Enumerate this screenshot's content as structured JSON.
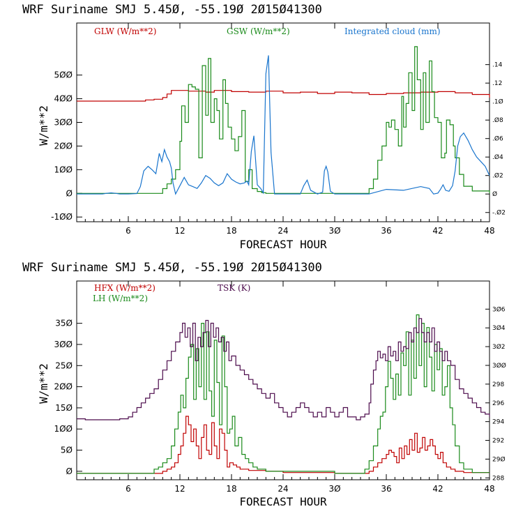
{
  "colors": {
    "red": "#c00000",
    "green": "#1a8a1a",
    "blue": "#1874cd",
    "purple": "#4b0a4b",
    "axis": "#000000"
  },
  "chart_data": [
    {
      "type": "line",
      "title": "WRF   Suriname SMJ   5.45Ø, -55.19Ø  2Ø15Ø41300",
      "xlabel": "FORECAST HOUR",
      "ylabel": "W/m**2",
      "xlim": [
        0,
        48
      ],
      "ylim": [
        -120,
        720
      ],
      "xticks": [
        6,
        12,
        18,
        24,
        30,
        36,
        42,
        48
      ],
      "yticks": [
        -100,
        0,
        100,
        200,
        300,
        400,
        500
      ],
      "ylim_right": [
        -0.03,
        0.185
      ],
      "yticks_right": [
        -0.02,
        0,
        0.02,
        0.04,
        0.06,
        0.08,
        0.1,
        0.12,
        0.14
      ],
      "yticks_right_labels": [
        "-.Ø2",
        "Ø",
        ".Ø2",
        ".Ø4",
        ".Ø6",
        ".Ø8",
        ".1Ø",
        ".12",
        ".14"
      ],
      "legend": [
        "GLW (W/m**2)",
        "GSW (W/m**2)",
        "Integrated cloud (mm)"
      ],
      "series": [
        {
          "name": "GLW (W/m**2)",
          "color": "red",
          "axis": "left",
          "step": true,
          "x": [
            0,
            6,
            8,
            9,
            10,
            10.5,
            11,
            12,
            13,
            15,
            16,
            18,
            20,
            22,
            24,
            26,
            28,
            30,
            32,
            34,
            36,
            38,
            40,
            42,
            44,
            46,
            48
          ],
          "y": [
            390,
            390,
            395,
            398,
            405,
            420,
            435,
            435,
            432,
            428,
            435,
            430,
            428,
            432,
            425,
            428,
            422,
            428,
            425,
            418,
            422,
            425,
            428,
            430,
            425,
            418,
            405
          ]
        },
        {
          "name": "GSW (W/m**2)",
          "color": "green",
          "axis": "left",
          "step": true,
          "x": [
            0,
            9.5,
            10,
            10.5,
            11,
            11.5,
            12,
            12.2,
            12.6,
            13,
            13.4,
            13.8,
            14.2,
            14.6,
            15,
            15.3,
            15.6,
            16,
            16.3,
            16.6,
            17,
            17.3,
            17.6,
            18,
            18.4,
            18.8,
            19.2,
            19.6,
            20,
            20.4,
            21,
            21.5,
            22,
            33.8,
            34,
            34.5,
            35,
            35.5,
            36,
            36.3,
            36.6,
            37,
            37.4,
            37.8,
            38,
            38.3,
            38.6,
            39,
            39.3,
            39.6,
            40,
            40.3,
            40.6,
            41,
            41.3,
            41.6,
            42,
            42.4,
            42.8,
            43,
            43.4,
            43.8,
            44,
            44.5,
            45,
            46,
            48
          ],
          "y": [
            0,
            0,
            20,
            40,
            60,
            100,
            220,
            370,
            300,
            460,
            450,
            440,
            150,
            540,
            330,
            570,
            300,
            400,
            350,
            230,
            480,
            380,
            280,
            230,
            180,
            240,
            350,
            50,
            100,
            20,
            8,
            3,
            0,
            0,
            20,
            60,
            140,
            200,
            300,
            280,
            310,
            270,
            200,
            410,
            280,
            380,
            510,
            350,
            620,
            480,
            270,
            510,
            300,
            560,
            430,
            320,
            300,
            150,
            170,
            310,
            290,
            200,
            150,
            80,
            30,
            10,
            0
          ]
        },
        {
          "name": "Integrated cloud (mm)",
          "color": "blue",
          "axis": "right",
          "step": false,
          "x": [
            0,
            3,
            3.5,
            4,
            4.5,
            5,
            6,
            7,
            7.4,
            7.8,
            8.3,
            8.8,
            9.2,
            9.6,
            9.9,
            10.2,
            10.5,
            10.8,
            11,
            11.2,
            11.5,
            12,
            12.5,
            13,
            13.5,
            14,
            14.5,
            15,
            15.5,
            16,
            16.5,
            17,
            17.5,
            18,
            18.5,
            19,
            19.5,
            19.8,
            20,
            20.3,
            20.6,
            21,
            21.4,
            21.7,
            22,
            22.3,
            22.6,
            23,
            25,
            26,
            26.4,
            26.8,
            27.2,
            28,
            28.6,
            28.8,
            29,
            29.2,
            29.5,
            30,
            34,
            36,
            38,
            40,
            41,
            41.5,
            42,
            42.3,
            42.6,
            42.9,
            43.3,
            43.7,
            44,
            44.3,
            44.6,
            45,
            45.5,
            46,
            46.5,
            47,
            47.5,
            48
          ],
          "y": [
            0,
            0,
            0.0008,
            0.0012,
            0.0008,
            0,
            0,
            0.0005,
            0.008,
            0.025,
            0.03,
            0.026,
            0.022,
            0.044,
            0.035,
            0.048,
            0.04,
            0.035,
            0.028,
            0.012,
            0,
            0.009,
            0.018,
            0.01,
            0.008,
            0.006,
            0.012,
            0.02,
            0.017,
            0.012,
            0.009,
            0.012,
            0.022,
            0.016,
            0.013,
            0.011,
            0.012,
            0.014,
            0.01,
            0.046,
            0.063,
            0.01,
            0.006,
            0.0012,
            0.13,
            0.15,
            0.045,
            0,
            0,
            0,
            0.009,
            0.015,
            0.004,
            0,
            0.002,
            0.025,
            0.03,
            0.024,
            0.003,
            0,
            0,
            0.005,
            0.004,
            0.008,
            0.006,
            0,
            0.001,
            0.005,
            0.01,
            0.004,
            0.003,
            0.009,
            0.025,
            0.052,
            0.062,
            0.066,
            0.058,
            0.048,
            0.04,
            0.035,
            0.03,
            0.02
          ]
        }
      ]
    },
    {
      "type": "line",
      "title": "WRF   Suriname SMJ   5.45Ø, -55.19Ø  2Ø15Ø41300",
      "xlabel": "FORECAST HOUR",
      "ylabel": "W/m**2",
      "xlim": [
        0,
        48
      ],
      "ylim": [
        -20,
        450
      ],
      "xticks": [
        6,
        12,
        18,
        24,
        30,
        36,
        42,
        48
      ],
      "yticks": [
        0,
        50,
        100,
        150,
        200,
        250,
        300,
        350
      ],
      "ylim_right": [
        287.8,
        309
      ],
      "yticks_right": [
        288,
        290,
        292,
        294,
        296,
        298,
        300,
        302,
        304,
        306
      ],
      "yticks_right_labels": [
        "288",
        "29Ø",
        "292",
        "294",
        "296",
        "298",
        "3ØØ",
        "3Ø2",
        "3Ø4",
        "3Ø6"
      ],
      "legend": [
        "HFX (W/m**2)",
        "LH (W/m**2)",
        "TSK (K)"
      ],
      "series": [
        {
          "name": "HFX (W/m**2)",
          "color": "red",
          "axis": "left",
          "step": true,
          "x": [
            0,
            9,
            10,
            10.5,
            11,
            11.4,
            11.8,
            12.1,
            12.4,
            12.7,
            13,
            13.3,
            13.6,
            13.9,
            14.2,
            14.5,
            14.8,
            15.1,
            15.4,
            15.7,
            16,
            16.3,
            16.6,
            16.9,
            17.2,
            17.5,
            17.8,
            18.2,
            18.6,
            19,
            20,
            22,
            24,
            30,
            33,
            34,
            34.5,
            35,
            35.5,
            36,
            36.3,
            36.6,
            36.9,
            37.2,
            37.5,
            37.8,
            38.1,
            38.4,
            38.7,
            39,
            39.3,
            39.6,
            39.9,
            40.2,
            40.5,
            40.8,
            41.1,
            41.4,
            41.7,
            42,
            42.3,
            42.6,
            43,
            43.5,
            44,
            45,
            48
          ],
          "y": [
            -5,
            -5,
            0,
            5,
            10,
            20,
            40,
            60,
            90,
            130,
            110,
            70,
            100,
            60,
            30,
            80,
            110,
            50,
            40,
            115,
            60,
            30,
            100,
            90,
            50,
            10,
            20,
            15,
            10,
            5,
            2,
            0,
            -3,
            -5,
            -5,
            0,
            10,
            20,
            30,
            40,
            50,
            45,
            35,
            20,
            55,
            30,
            60,
            40,
            75,
            50,
            90,
            45,
            55,
            80,
            50,
            60,
            75,
            60,
            40,
            30,
            45,
            20,
            10,
            5,
            0,
            -3,
            -3
          ]
        },
        {
          "name": "LH (W/m**2)",
          "color": "green",
          "axis": "left",
          "step": true,
          "x": [
            0,
            8,
            9,
            9.5,
            10,
            10.5,
            11,
            11.4,
            11.8,
            12.1,
            12.4,
            12.7,
            13,
            13.3,
            13.6,
            13.9,
            14.2,
            14.5,
            14.8,
            15.1,
            15.4,
            15.7,
            16,
            16.3,
            16.6,
            16.9,
            17.2,
            17.5,
            17.8,
            18.1,
            18.4,
            18.8,
            19.2,
            19.6,
            20,
            20.5,
            21,
            22,
            30,
            33,
            33.5,
            34,
            34.5,
            35,
            35.3,
            35.6,
            35.9,
            36.2,
            36.5,
            36.8,
            37.1,
            37.4,
            37.7,
            38,
            38.3,
            38.6,
            38.9,
            39.2,
            39.5,
            39.8,
            40.1,
            40.4,
            40.7,
            41,
            41.3,
            41.6,
            41.9,
            42.2,
            42.5,
            42.8,
            43.1,
            43.4,
            43.7,
            44,
            44.5,
            45,
            46,
            48
          ],
          "y": [
            -5,
            -5,
            5,
            10,
            20,
            30,
            60,
            100,
            140,
            180,
            150,
            220,
            270,
            300,
            170,
            290,
            200,
            350,
            170,
            330,
            190,
            130,
            310,
            210,
            110,
            320,
            200,
            90,
            100,
            130,
            60,
            80,
            40,
            30,
            20,
            10,
            5,
            0,
            -5,
            -5,
            5,
            25,
            60,
            100,
            130,
            140,
            200,
            260,
            220,
            170,
            230,
            180,
            280,
            250,
            330,
            180,
            310,
            220,
            370,
            250,
            350,
            200,
            340,
            270,
            190,
            300,
            240,
            290,
            180,
            200,
            250,
            150,
            110,
            60,
            20,
            5,
            -3,
            -3
          ]
        },
        {
          "name": "TSK (K)",
          "color": "purple",
          "axis": "right",
          "step": true,
          "x": [
            0,
            1,
            3,
            5,
            6,
            6.5,
            7,
            7.5,
            8,
            8.5,
            9,
            9.5,
            10,
            10.5,
            11,
            11.5,
            12,
            12.3,
            12.6,
            12.9,
            13.2,
            13.5,
            13.8,
            14.1,
            14.4,
            14.7,
            15,
            15.3,
            15.6,
            15.9,
            16.2,
            16.5,
            16.8,
            17.1,
            17.4,
            17.7,
            18,
            18.5,
            19,
            19.5,
            20,
            20.5,
            21,
            21.5,
            22,
            22.5,
            23,
            23.5,
            24,
            24.5,
            25,
            25.5,
            26,
            26.5,
            27,
            27.5,
            28,
            28.5,
            29,
            29.5,
            30,
            30.5,
            31,
            31.5,
            32,
            32.5,
            33,
            33.5,
            34,
            34.2,
            34.5,
            34.8,
            35,
            35.3,
            35.6,
            35.9,
            36.2,
            36.5,
            36.8,
            37.1,
            37.4,
            37.7,
            38,
            38.3,
            38.6,
            38.9,
            39.2,
            39.5,
            39.8,
            40.1,
            40.4,
            40.7,
            41,
            41.3,
            41.6,
            41.9,
            42.2,
            42.5,
            42.8,
            43.1,
            43.5,
            44,
            44.5,
            45,
            45.5,
            46,
            46.5,
            47,
            47.5,
            48
          ],
          "y": [
            294.3,
            294.2,
            294.2,
            294.3,
            294.5,
            295,
            295.5,
            296,
            296.5,
            297,
            297.5,
            298.5,
            299.5,
            300.5,
            301.5,
            302.5,
            303.5,
            304.5,
            303,
            304,
            302,
            304.5,
            300.5,
            303,
            302,
            303.5,
            304.8,
            302,
            304.5,
            303,
            304,
            302.5,
            303,
            301.5,
            302.5,
            300.5,
            301,
            300,
            299.5,
            299,
            298.5,
            298,
            297.5,
            297,
            296.5,
            297,
            296,
            295.5,
            295,
            294.5,
            295,
            295.5,
            296,
            295.5,
            295,
            294.5,
            295,
            294.5,
            295.5,
            295,
            294.5,
            295,
            295.5,
            294.5,
            294.5,
            294.2,
            294.5,
            294.8,
            296,
            298,
            299.5,
            300.5,
            301.5,
            300.8,
            301.2,
            300.5,
            302,
            301,
            301.5,
            300.5,
            302.5,
            301.5,
            302,
            301.8,
            303.5,
            302.5,
            304,
            303.5,
            305,
            303.5,
            302.5,
            303.5,
            302.5,
            304,
            301.5,
            302.5,
            301.5,
            300.5,
            301.5,
            300.5,
            300,
            298.5,
            297.5,
            297,
            296.5,
            296,
            295.5,
            295,
            294.8,
            294.5
          ]
        }
      ]
    }
  ]
}
